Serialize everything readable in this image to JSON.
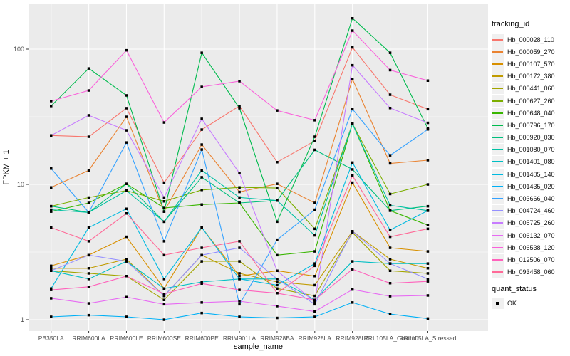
{
  "panel": {
    "bg": "#EBEBEB",
    "grid_color": "#FFFFFF",
    "tick_color": "#333333",
    "tick_label_color": "#4D4D4D",
    "axis_title_color": "#000000",
    "legend_key_bg": "#F0F0F0",
    "marker_color": "#000000"
  },
  "chart_data": {
    "type": "line",
    "title": "",
    "xlabel": "sample_name",
    "ylabel": "FPKM + 1",
    "y_scale": "log10",
    "y_ticks": [
      1,
      10,
      100
    ],
    "y_minor_ticks": [
      3.1623,
      31.623
    ],
    "ylim": [
      0.9,
      215
    ],
    "grid": true,
    "legend_title": "tracking_id",
    "legend_position": "right",
    "marker": {
      "shape": "square",
      "color": "#000000",
      "size": 3.5
    },
    "categories": [
      "PB350LA",
      "RRIM600LA",
      "RRIM600LE",
      "RRIM600SE",
      "RRIM600PE",
      "RRIM901LA",
      "RRIM928BA",
      "RRIM928LA",
      "RRIM928LE",
      "RRII105LA_Control",
      "RRII105LA_Stressed"
    ],
    "series": [
      {
        "name": "Hb_000028_110",
        "color": "#F8766D",
        "values": [
          23,
          22.5,
          36.6,
          10.3,
          25.4,
          38,
          14.6,
          21,
          103,
          46,
          36
        ]
      },
      {
        "name": "Hb_000059_270",
        "color": "#EA8331",
        "values": [
          9.5,
          12.7,
          31.6,
          6.3,
          19.7,
          8.8,
          10.1,
          7.3,
          60,
          14.3,
          15.1
        ]
      },
      {
        "name": "Hb_000107_570",
        "color": "#D89000",
        "values": [
          2.5,
          3.0,
          4.1,
          1.7,
          4.8,
          2.1,
          2.3,
          2.1,
          10.3,
          3.4,
          3.2
        ]
      },
      {
        "name": "Hb_000172_380",
        "color": "#C09B00",
        "values": [
          2.4,
          2.4,
          2.8,
          1.5,
          3.0,
          2.2,
          1.9,
          1.8,
          4.5,
          2.8,
          2.4
        ]
      },
      {
        "name": "Hb_000441_060",
        "color": "#A3A500",
        "values": [
          2.3,
          2.2,
          2.1,
          1.4,
          2.7,
          2.7,
          1.7,
          1.5,
          4.4,
          2.3,
          2.2
        ]
      },
      {
        "name": "Hb_000627_260",
        "color": "#7CAE00",
        "values": [
          6.9,
          8.0,
          9.0,
          7.5,
          9.1,
          9.5,
          9.4,
          4.7,
          28,
          8.5,
          10.0
        ]
      },
      {
        "name": "Hb_000648_040",
        "color": "#39B600",
        "values": [
          6.3,
          7.3,
          10.1,
          6.7,
          7.1,
          7.3,
          3.0,
          3.2,
          28.2,
          6.4,
          5.0
        ]
      },
      {
        "name": "Hb_000796_170",
        "color": "#00BB4E",
        "values": [
          38,
          72,
          45.5,
          6.3,
          94,
          36.6,
          5.3,
          22.5,
          169,
          94,
          26
        ]
      },
      {
        "name": "Hb_000920_030",
        "color": "#00BF7D",
        "values": [
          6.9,
          6.2,
          10.1,
          5.3,
          11.3,
          7.3,
          7.6,
          18,
          12.9,
          6.4,
          6.9
        ]
      },
      {
        "name": "Hb_001080_070",
        "color": "#00C1A3",
        "values": [
          6.5,
          6.2,
          9.0,
          5.3,
          12.7,
          8.0,
          7.6,
          4.2,
          28,
          7.0,
          6.4
        ]
      },
      {
        "name": "Hb_001401_080",
        "color": "#00BFC4",
        "values": [
          2.3,
          2.0,
          2.7,
          1.7,
          1.9,
          2.0,
          2.0,
          1.4,
          2.7,
          2.6,
          2.6
        ]
      },
      {
        "name": "Hb_001405_140",
        "color": "#00BAE0",
        "values": [
          1.7,
          4.8,
          6.6,
          2.0,
          4.8,
          2.0,
          1.8,
          2.6,
          14.5,
          4.6,
          6.4
        ]
      },
      {
        "name": "Hb_001435_020",
        "color": "#00B0F6",
        "values": [
          1.05,
          1.08,
          1.05,
          1.0,
          1.12,
          1.05,
          1.03,
          1.05,
          1.34,
          1.1,
          1.02
        ]
      },
      {
        "name": "Hb_003666_040",
        "color": "#35A2FF",
        "values": [
          13.1,
          6.2,
          20.4,
          3.8,
          18.1,
          1.3,
          3.9,
          6.5,
          36,
          16.4,
          25.5
        ]
      },
      {
        "name": "Hb_004724_460",
        "color": "#9590FF",
        "values": [
          2.3,
          3.0,
          2.7,
          1.5,
          3.0,
          3.4,
          2.0,
          1.3,
          4.5,
          2.6,
          2.0
        ]
      },
      {
        "name": "Hb_005725_260",
        "color": "#C77CFF",
        "values": [
          23,
          32.4,
          25.1,
          8.0,
          30.5,
          12.1,
          2.3,
          1.35,
          76,
          36.7,
          28.5
        ]
      },
      {
        "name": "Hb_006132_070",
        "color": "#E76BF3",
        "values": [
          1.44,
          1.32,
          1.47,
          1.3,
          1.34,
          1.37,
          1.26,
          1.15,
          1.67,
          1.49,
          1.51
        ]
      },
      {
        "name": "Hb_006538_120",
        "color": "#FA62DB",
        "values": [
          41.3,
          49.5,
          98,
          28.7,
          52.6,
          58,
          35.2,
          29.8,
          137,
          70,
          58.5
        ]
      },
      {
        "name": "Hb_012506_070",
        "color": "#FF62BC",
        "values": [
          1.66,
          1.75,
          2.1,
          1.55,
          1.85,
          1.66,
          1.57,
          1.4,
          2.36,
          1.86,
          1.92
        ]
      },
      {
        "name": "Hb_093458_060",
        "color": "#FF6A98",
        "values": [
          4.8,
          3.8,
          6.1,
          3.0,
          3.4,
          3.8,
          1.57,
          2.5,
          11.6,
          4.1,
          4.7
        ]
      }
    ],
    "quant_legend": {
      "title": "quant_status",
      "items": [
        {
          "label": "OK",
          "marker": "black-square"
        }
      ]
    }
  }
}
